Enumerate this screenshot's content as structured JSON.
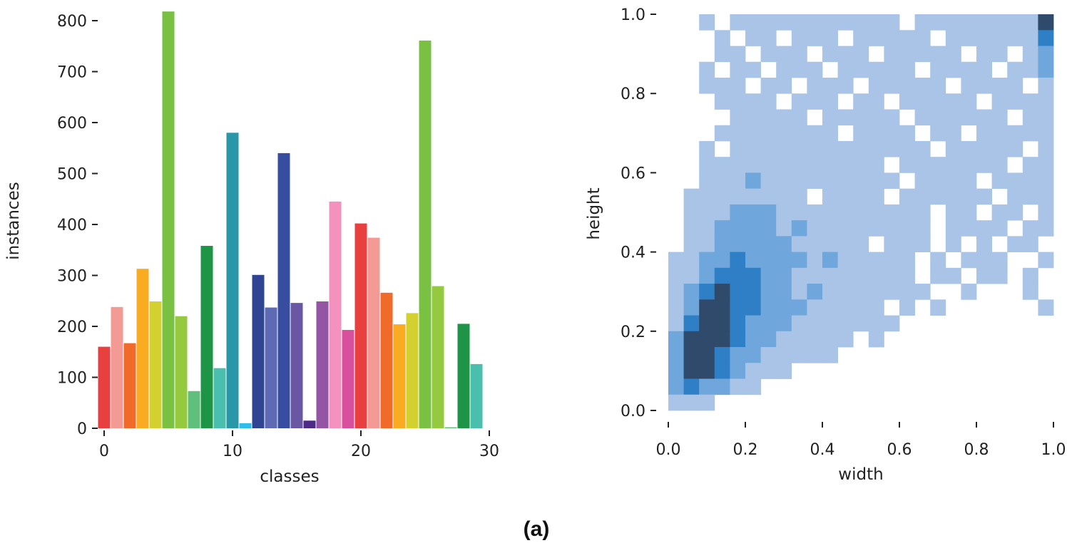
{
  "caption": "(a)",
  "chart_data": [
    {
      "type": "bar",
      "xlabel": "classes",
      "ylabel": "instances",
      "xlim": [
        -1,
        30
      ],
      "ylim": [
        0,
        820
      ],
      "xticks": [
        0,
        10,
        20,
        30
      ],
      "yticks": [
        0,
        100,
        200,
        300,
        400,
        500,
        600,
        700,
        800
      ],
      "grid": false,
      "categories": [
        0,
        1,
        2,
        3,
        4,
        5,
        6,
        7,
        8,
        9,
        10,
        11,
        12,
        13,
        14,
        15,
        16,
        17,
        18,
        19,
        20,
        21,
        22,
        23,
        24,
        25,
        26,
        27,
        28,
        29
      ],
      "values": [
        160,
        238,
        167,
        313,
        249,
        818,
        220,
        73,
        358,
        118,
        580,
        10,
        301,
        237,
        540,
        246,
        15,
        249,
        445,
        193,
        402,
        374,
        266,
        204,
        226,
        761,
        279,
        2,
        205,
        126
      ],
      "colors": [
        "#e8403f",
        "#f49a94",
        "#f06a2a",
        "#f9ab22",
        "#d2d12f",
        "#79c043",
        "#95c93f",
        "#5fc07c",
        "#1e9447",
        "#4bbfae",
        "#2a97a8",
        "#2ebdea",
        "#2f4593",
        "#5e6ab3",
        "#374ea0",
        "#6a57a4",
        "#4c2a86",
        "#9456a4",
        "#f391bf",
        "#d84f9e",
        "#e8403f",
        "#f49a94",
        "#f06a2a",
        "#f9ab22",
        "#d2d12f",
        "#79c043",
        "#95c93f",
        "#5fc07c",
        "#1e9447",
        "#4bbfae"
      ]
    },
    {
      "type": "heatmap",
      "xlabel": "width",
      "ylabel": "height",
      "xlim": [
        0,
        1
      ],
      "ylim": [
        0,
        1
      ],
      "xticks": [
        "0.0",
        "0.2",
        "0.4",
        "0.6",
        "0.8",
        "1.0"
      ],
      "yticks": [
        "0.0",
        "0.2",
        "0.4",
        "0.6",
        "0.8",
        "1.0"
      ],
      "grid": false,
      "level_colors": [
        "#ffffff",
        "#a9c4e6",
        "#6fa6dc",
        "#2f7fc6",
        "#2f4a6b"
      ],
      "bins_top_to_bottom": [
        [
          0,
          0,
          1,
          0,
          1,
          1,
          1,
          1,
          1,
          1,
          1,
          1,
          1,
          1,
          1,
          0,
          1,
          1,
          1,
          1,
          1,
          1,
          1,
          1,
          4
        ],
        [
          0,
          0,
          0,
          1,
          0,
          1,
          1,
          0,
          1,
          1,
          1,
          0,
          1,
          1,
          1,
          1,
          1,
          0,
          1,
          1,
          1,
          1,
          1,
          1,
          3
        ],
        [
          0,
          0,
          0,
          1,
          1,
          0,
          1,
          1,
          1,
          0,
          1,
          1,
          1,
          0,
          1,
          1,
          1,
          1,
          1,
          0,
          1,
          1,
          0,
          1,
          2
        ],
        [
          0,
          0,
          1,
          0,
          1,
          1,
          0,
          1,
          1,
          1,
          0,
          1,
          1,
          1,
          1,
          1,
          0,
          1,
          1,
          1,
          1,
          0,
          1,
          1,
          2
        ],
        [
          0,
          0,
          1,
          1,
          1,
          0,
          1,
          1,
          0,
          1,
          1,
          1,
          0,
          1,
          1,
          1,
          1,
          1,
          0,
          1,
          1,
          1,
          1,
          0,
          1
        ],
        [
          0,
          0,
          0,
          1,
          1,
          1,
          1,
          0,
          1,
          1,
          1,
          0,
          1,
          1,
          0,
          1,
          1,
          1,
          1,
          1,
          0,
          1,
          1,
          1,
          1
        ],
        [
          0,
          0,
          0,
          0,
          1,
          1,
          1,
          1,
          1,
          0,
          1,
          1,
          1,
          1,
          1,
          0,
          1,
          1,
          1,
          1,
          1,
          1,
          0,
          1,
          1
        ],
        [
          0,
          0,
          0,
          1,
          1,
          1,
          1,
          1,
          1,
          1,
          1,
          0,
          1,
          1,
          1,
          1,
          0,
          1,
          1,
          0,
          1,
          1,
          1,
          1,
          1
        ],
        [
          0,
          0,
          1,
          0,
          1,
          1,
          1,
          1,
          1,
          1,
          1,
          1,
          1,
          1,
          1,
          1,
          1,
          0,
          1,
          1,
          1,
          1,
          1,
          0,
          1
        ],
        [
          0,
          0,
          1,
          1,
          1,
          1,
          1,
          1,
          1,
          1,
          1,
          1,
          1,
          1,
          0,
          1,
          1,
          1,
          1,
          1,
          1,
          1,
          0,
          1,
          1
        ],
        [
          0,
          0,
          1,
          1,
          1,
          2,
          1,
          1,
          1,
          1,
          1,
          1,
          1,
          1,
          1,
          0,
          1,
          1,
          1,
          1,
          0,
          1,
          1,
          1,
          1
        ],
        [
          0,
          1,
          1,
          1,
          1,
          1,
          1,
          1,
          1,
          0,
          1,
          1,
          1,
          1,
          0,
          1,
          1,
          1,
          1,
          1,
          1,
          0,
          1,
          1,
          1
        ],
        [
          0,
          1,
          1,
          1,
          2,
          2,
          2,
          1,
          1,
          1,
          1,
          1,
          1,
          1,
          1,
          1,
          1,
          0,
          1,
          1,
          0,
          1,
          1,
          0,
          1
        ],
        [
          0,
          1,
          1,
          2,
          2,
          2,
          2,
          1,
          2,
          1,
          1,
          1,
          1,
          1,
          1,
          1,
          1,
          0,
          1,
          1,
          1,
          1,
          0,
          1,
          1
        ],
        [
          0,
          1,
          1,
          2,
          2,
          2,
          2,
          2,
          1,
          1,
          1,
          1,
          1,
          0,
          1,
          1,
          1,
          0,
          1,
          0,
          1,
          0,
          1,
          1,
          0
        ],
        [
          1,
          1,
          2,
          2,
          3,
          2,
          2,
          2,
          2,
          1,
          2,
          1,
          1,
          1,
          1,
          1,
          0,
          1,
          0,
          1,
          1,
          1,
          0,
          0,
          1
        ],
        [
          1,
          1,
          2,
          3,
          3,
          3,
          2,
          2,
          1,
          1,
          1,
          1,
          1,
          1,
          1,
          1,
          0,
          1,
          1,
          0,
          1,
          1,
          0,
          1,
          0
        ],
        [
          1,
          2,
          3,
          4,
          3,
          3,
          2,
          2,
          1,
          2,
          1,
          1,
          1,
          1,
          1,
          1,
          1,
          0,
          0,
          1,
          0,
          0,
          0,
          1,
          0
        ],
        [
          1,
          2,
          4,
          4,
          3,
          3,
          2,
          2,
          2,
          1,
          1,
          1,
          1,
          1,
          0,
          1,
          0,
          1,
          0,
          0,
          0,
          0,
          0,
          0,
          1
        ],
        [
          1,
          3,
          4,
          4,
          3,
          2,
          2,
          2,
          1,
          1,
          1,
          1,
          1,
          1,
          1,
          0,
          0,
          0,
          0,
          0,
          0,
          0,
          0,
          0,
          0
        ],
        [
          2,
          4,
          4,
          4,
          3,
          2,
          2,
          1,
          1,
          1,
          1,
          1,
          0,
          1,
          0,
          0,
          0,
          0,
          0,
          0,
          0,
          0,
          0,
          0,
          0
        ],
        [
          2,
          4,
          4,
          3,
          2,
          2,
          1,
          1,
          1,
          1,
          1,
          0,
          0,
          0,
          0,
          0,
          0,
          0,
          0,
          0,
          0,
          0,
          0,
          0,
          0
        ],
        [
          2,
          4,
          4,
          3,
          2,
          1,
          1,
          1,
          0,
          0,
          0,
          0,
          0,
          0,
          0,
          0,
          0,
          0,
          0,
          0,
          0,
          0,
          0,
          0,
          0
        ],
        [
          2,
          3,
          2,
          2,
          1,
          1,
          0,
          0,
          0,
          0,
          0,
          0,
          0,
          0,
          0,
          0,
          0,
          0,
          0,
          0,
          0,
          0,
          0,
          0,
          0
        ],
        [
          1,
          1,
          1,
          0,
          0,
          0,
          0,
          0,
          0,
          0,
          0,
          0,
          0,
          0,
          0,
          0,
          0,
          0,
          0,
          0,
          0,
          0,
          0,
          0,
          0
        ]
      ]
    }
  ]
}
